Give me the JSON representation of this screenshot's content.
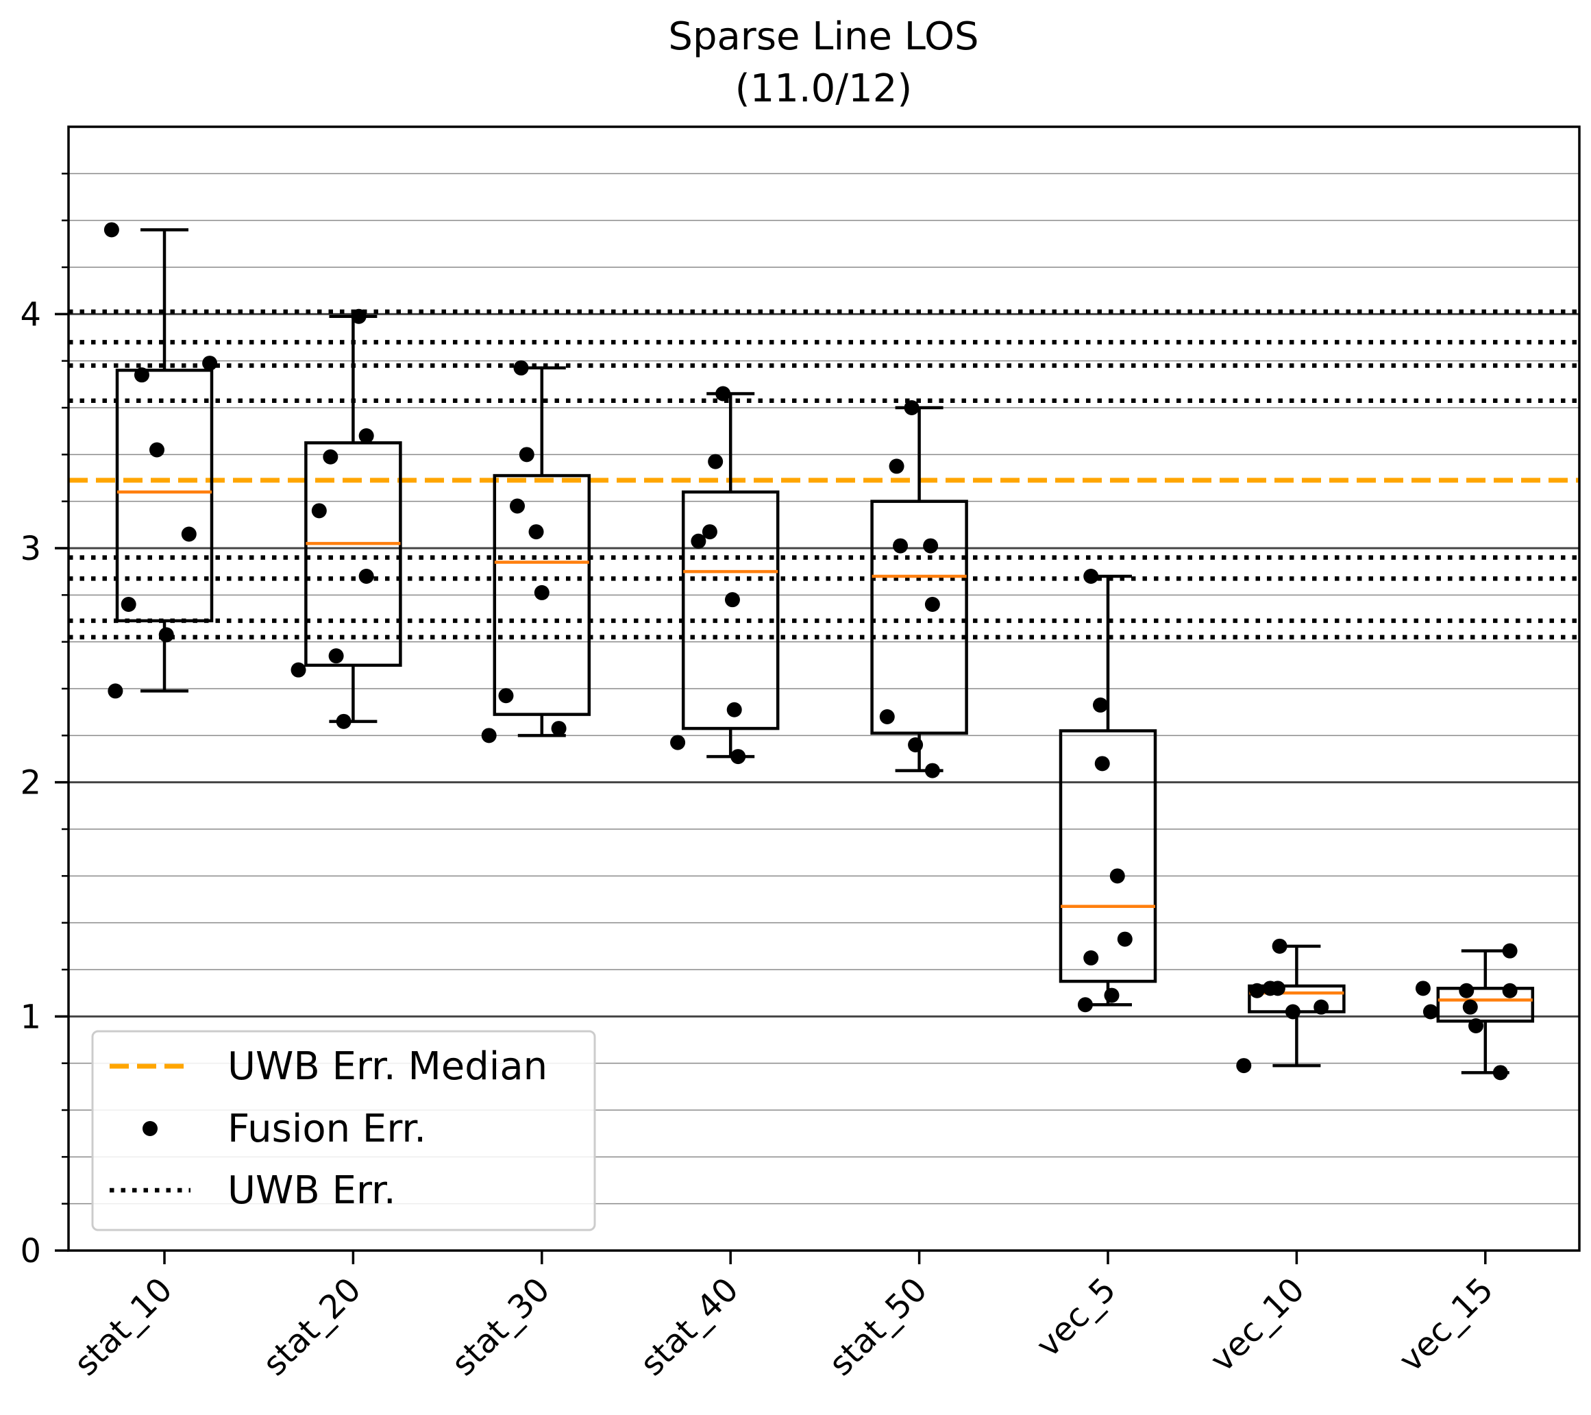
{
  "chart_data": {
    "type": "box",
    "title": "Sparse Line LOS",
    "subtitle": "(11.0/12)",
    "xlabel": "",
    "ylabel": "",
    "ylim": [
      0,
      4.8
    ],
    "yticks": [
      "0",
      "1",
      "2",
      "3",
      "4"
    ],
    "minor_ytick_step": 0.2,
    "categories": [
      "stat_10",
      "stat_20",
      "stat_30",
      "stat_40",
      "stat_50",
      "vec_5",
      "vec_10",
      "vec_15"
    ],
    "boxes": [
      {
        "category": "stat_10",
        "whisker_low": 2.39,
        "q1": 2.69,
        "median": 3.24,
        "q3": 3.76,
        "whisker_high": 4.36,
        "points": [
          [
            -0.28,
            4.36
          ],
          [
            -0.12,
            3.74
          ],
          [
            -0.04,
            3.42
          ],
          [
            0.24,
            3.79
          ],
          [
            0.13,
            3.06
          ],
          [
            -0.19,
            2.76
          ],
          [
            0.01,
            2.63
          ],
          [
            -0.26,
            2.39
          ]
        ]
      },
      {
        "category": "stat_20",
        "whisker_low": 2.26,
        "q1": 2.5,
        "median": 3.02,
        "q3": 3.45,
        "whisker_high": 3.99,
        "points": [
          [
            0.03,
            3.99
          ],
          [
            0.07,
            3.48
          ],
          [
            -0.12,
            3.39
          ],
          [
            -0.18,
            3.16
          ],
          [
            0.07,
            2.88
          ],
          [
            -0.09,
            2.54
          ],
          [
            -0.29,
            2.48
          ],
          [
            -0.05,
            2.26
          ]
        ]
      },
      {
        "category": "stat_30",
        "whisker_low": 2.2,
        "q1": 2.29,
        "median": 2.94,
        "q3": 3.31,
        "whisker_high": 3.77,
        "points": [
          [
            -0.11,
            3.77
          ],
          [
            -0.08,
            3.4
          ],
          [
            -0.13,
            3.18
          ],
          [
            -0.03,
            3.07
          ],
          [
            0.0,
            2.81
          ],
          [
            -0.19,
            2.37
          ],
          [
            0.09,
            2.23
          ],
          [
            -0.28,
            2.2
          ]
        ]
      },
      {
        "category": "stat_40",
        "whisker_low": 2.11,
        "q1": 2.23,
        "median": 2.9,
        "q3": 3.24,
        "whisker_high": 3.66,
        "points": [
          [
            -0.04,
            3.66
          ],
          [
            -0.08,
            3.37
          ],
          [
            -0.11,
            3.07
          ],
          [
            -0.17,
            3.03
          ],
          [
            0.01,
            2.78
          ],
          [
            0.02,
            2.31
          ],
          [
            0.04,
            2.11
          ],
          [
            -0.28,
            2.17
          ]
        ]
      },
      {
        "category": "stat_50",
        "whisker_low": 2.05,
        "q1": 2.21,
        "median": 2.88,
        "q3": 3.2,
        "whisker_high": 3.6,
        "points": [
          [
            -0.04,
            3.6
          ],
          [
            -0.12,
            3.35
          ],
          [
            -0.1,
            3.01
          ],
          [
            0.06,
            3.01
          ],
          [
            0.07,
            2.76
          ],
          [
            -0.17,
            2.28
          ],
          [
            -0.02,
            2.16
          ],
          [
            0.07,
            2.05
          ]
        ]
      },
      {
        "category": "vec_5",
        "whisker_low": 1.05,
        "q1": 1.15,
        "median": 1.47,
        "q3": 2.22,
        "whisker_high": 2.88,
        "points": [
          [
            -0.09,
            2.88
          ],
          [
            -0.04,
            2.33
          ],
          [
            -0.03,
            2.08
          ],
          [
            0.05,
            1.6
          ],
          [
            0.09,
            1.33
          ],
          [
            -0.09,
            1.25
          ],
          [
            0.02,
            1.09
          ],
          [
            -0.12,
            1.05
          ]
        ]
      },
      {
        "category": "vec_10",
        "whisker_low": 0.79,
        "q1": 1.02,
        "median": 1.1,
        "q3": 1.13,
        "whisker_high": 1.3,
        "points": [
          [
            -0.09,
            1.3
          ],
          [
            -0.21,
            1.11
          ],
          [
            -0.14,
            1.12
          ],
          [
            -0.1,
            1.12
          ],
          [
            -0.02,
            1.02
          ],
          [
            0.13,
            1.04
          ],
          [
            -0.28,
            0.79
          ]
        ]
      },
      {
        "category": "vec_15",
        "whisker_low": 0.76,
        "q1": 0.98,
        "median": 1.07,
        "q3": 1.12,
        "whisker_high": 1.28,
        "points": [
          [
            0.13,
            1.28
          ],
          [
            -0.33,
            1.12
          ],
          [
            -0.1,
            1.11
          ],
          [
            0.13,
            1.11
          ],
          [
            -0.08,
            1.04
          ],
          [
            -0.29,
            1.02
          ],
          [
            -0.05,
            0.96
          ],
          [
            0.08,
            0.76
          ]
        ]
      }
    ],
    "reference_lines": {
      "uwb_err_median": 3.29,
      "uwb_err": [
        4.01,
        3.88,
        3.78,
        3.63,
        2.96,
        2.87,
        2.69,
        2.62
      ]
    },
    "gridlines": {
      "major": [
        1,
        2,
        3,
        4
      ],
      "minor": [
        0.2,
        0.4,
        0.6,
        0.8,
        1.2,
        1.4,
        1.6,
        1.8,
        2.2,
        2.4,
        2.6,
        2.8,
        3.2,
        3.4,
        3.6,
        3.8,
        4.2,
        4.4,
        4.6
      ]
    },
    "legend": {
      "position": "lower-left",
      "entries": [
        {
          "label": "UWB Err. Median",
          "style": "dashed",
          "color": "#FFA500"
        },
        {
          "label": "Fusion Err.",
          "style": "dot",
          "color": "#000000"
        },
        {
          "label": "UWB Err.",
          "style": "dotted",
          "color": "#000000"
        }
      ]
    },
    "colors": {
      "median_line": "#FF7F0E",
      "uwb_median": "#FFA500",
      "box": "#000000",
      "points": "#000000",
      "grid_major": "#444444",
      "grid_minor": "#8a8a8a"
    }
  }
}
